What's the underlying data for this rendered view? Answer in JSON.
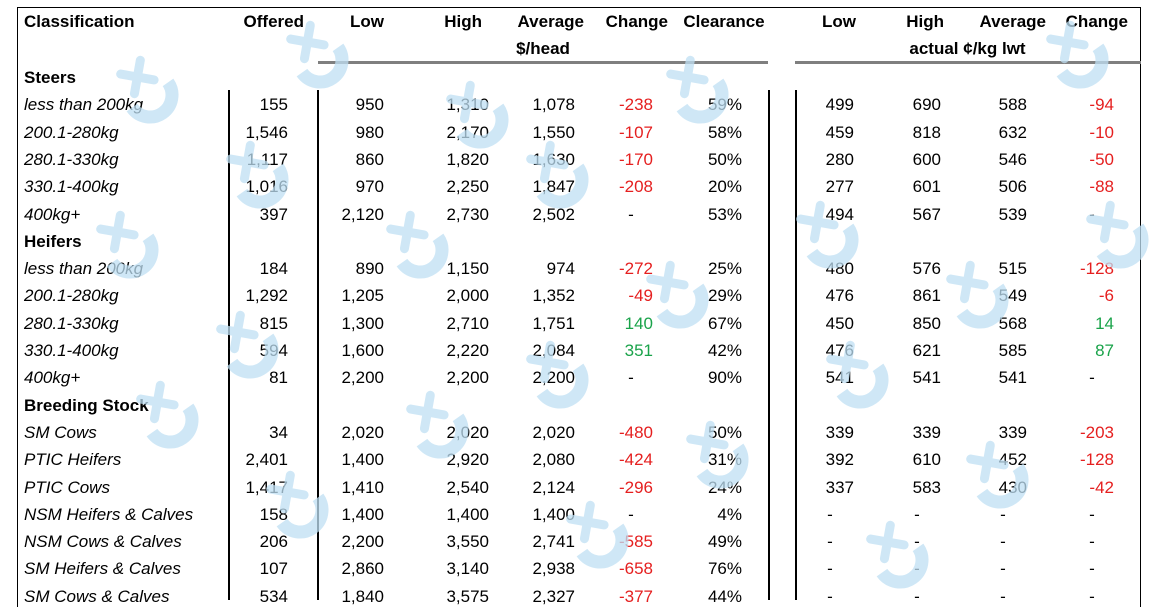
{
  "header": {
    "classification": "Classification",
    "offered": "Offered",
    "low": "Low",
    "high": "High",
    "average": "Average",
    "change": "Change",
    "clearance": "Clearance",
    "low2": "Low",
    "high2": "High",
    "average2": "Average",
    "change2": "Change",
    "unit1": "$/head",
    "unit2": "actual ¢/kg lwt"
  },
  "sections": [
    {
      "title": "Steers",
      "rows": [
        {
          "label": "less than 200kg",
          "offered": "155",
          "low": "950",
          "high": "1,310",
          "avg": "1,078",
          "change": "-238",
          "clearance": "59%",
          "low2": "499",
          "high2": "690",
          "avg2": "588",
          "change2": "-94"
        },
        {
          "label": "200.1-280kg",
          "offered": "1,546",
          "low": "980",
          "high": "2,170",
          "avg": "1,550",
          "change": "-107",
          "clearance": "58%",
          "low2": "459",
          "high2": "818",
          "avg2": "632",
          "change2": "-10"
        },
        {
          "label": "280.1-330kg",
          "offered": "1,117",
          "low": "860",
          "high": "1,820",
          "avg": "1,630",
          "change": "-170",
          "clearance": "50%",
          "low2": "280",
          "high2": "600",
          "avg2": "546",
          "change2": "-50"
        },
        {
          "label": "330.1-400kg",
          "offered": "1,016",
          "low": "970",
          "high": "2,250",
          "avg": "1,847",
          "change": "-208",
          "clearance": "20%",
          "low2": "277",
          "high2": "601",
          "avg2": "506",
          "change2": "-88"
        },
        {
          "label": "400kg+",
          "offered": "397",
          "low": "2,120",
          "high": "2,730",
          "avg": "2,502",
          "change": "-",
          "clearance": "53%",
          "low2": "494",
          "high2": "567",
          "avg2": "539",
          "change2": "-"
        }
      ]
    },
    {
      "title": "Heifers",
      "rows": [
        {
          "label": "less than 200kg",
          "offered": "184",
          "low": "890",
          "high": "1,150",
          "avg": "974",
          "change": "-272",
          "clearance": "25%",
          "low2": "480",
          "high2": "576",
          "avg2": "515",
          "change2": "-128"
        },
        {
          "label": "200.1-280kg",
          "offered": "1,292",
          "low": "1,205",
          "high": "2,000",
          "avg": "1,352",
          "change": "-49",
          "clearance": "29%",
          "low2": "476",
          "high2": "861",
          "avg2": "549",
          "change2": "-6"
        },
        {
          "label": "280.1-330kg",
          "offered": "815",
          "low": "1,300",
          "high": "2,710",
          "avg": "1,751",
          "change": "140",
          "clearance": "67%",
          "low2": "450",
          "high2": "850",
          "avg2": "568",
          "change2": "14"
        },
        {
          "label": "330.1-400kg",
          "offered": "594",
          "low": "1,600",
          "high": "2,220",
          "avg": "2,084",
          "change": "351",
          "clearance": "42%",
          "low2": "476",
          "high2": "621",
          "avg2": "585",
          "change2": "87"
        },
        {
          "label": "400kg+",
          "offered": "81",
          "low": "2,200",
          "high": "2,200",
          "avg": "2,200",
          "change": "-",
          "clearance": "90%",
          "low2": "541",
          "high2": "541",
          "avg2": "541",
          "change2": "-"
        }
      ]
    },
    {
      "title": "Breeding Stock",
      "rows": [
        {
          "label": "SM Cows",
          "offered": "34",
          "low": "2,020",
          "high": "2,020",
          "avg": "2,020",
          "change": "-480",
          "clearance": "50%",
          "low2": "339",
          "high2": "339",
          "avg2": "339",
          "change2": "-203"
        },
        {
          "label": "PTIC Heifers",
          "offered": "2,401",
          "low": "1,400",
          "high": "2,920",
          "avg": "2,080",
          "change": "-424",
          "clearance": "31%",
          "low2": "392",
          "high2": "610",
          "avg2": "452",
          "change2": "-128"
        },
        {
          "label": "PTIC Cows",
          "offered": "1,417",
          "low": "1,410",
          "high": "2,540",
          "avg": "2,124",
          "change": "-296",
          "clearance": "24%",
          "low2": "337",
          "high2": "583",
          "avg2": "430",
          "change2": "-42"
        },
        {
          "label": "NSM Heifers & Calves",
          "offered": "158",
          "low": "1,400",
          "high": "1,400",
          "avg": "1,400",
          "change": "-",
          "clearance": "4%",
          "low2": "-",
          "high2": "-",
          "avg2": "-",
          "change2": "-"
        },
        {
          "label": "NSM Cows & Calves",
          "offered": "206",
          "low": "2,200",
          "high": "3,550",
          "avg": "2,741",
          "change": "-585",
          "clearance": "49%",
          "low2": "-",
          "high2": "-",
          "avg2": "-",
          "change2": "-"
        },
        {
          "label": "SM Heifers & Calves",
          "offered": "107",
          "low": "2,860",
          "high": "3,140",
          "avg": "2,938",
          "change": "-658",
          "clearance": "76%",
          "low2": "-",
          "high2": "-",
          "avg2": "-",
          "change2": "-"
        },
        {
          "label": "SM Cows & Calves",
          "offered": "534",
          "low": "1,840",
          "high": "3,575",
          "avg": "2,327",
          "change": "-377",
          "clearance": "44%",
          "low2": "-",
          "high2": "-",
          "avg2": "-",
          "change2": "-"
        }
      ]
    }
  ],
  "colors": {
    "negative": "#e51f1f",
    "positive": "#1aa34a",
    "watermark": "#bfe0f4"
  },
  "watermark_icon": "mla-logo-watermark"
}
